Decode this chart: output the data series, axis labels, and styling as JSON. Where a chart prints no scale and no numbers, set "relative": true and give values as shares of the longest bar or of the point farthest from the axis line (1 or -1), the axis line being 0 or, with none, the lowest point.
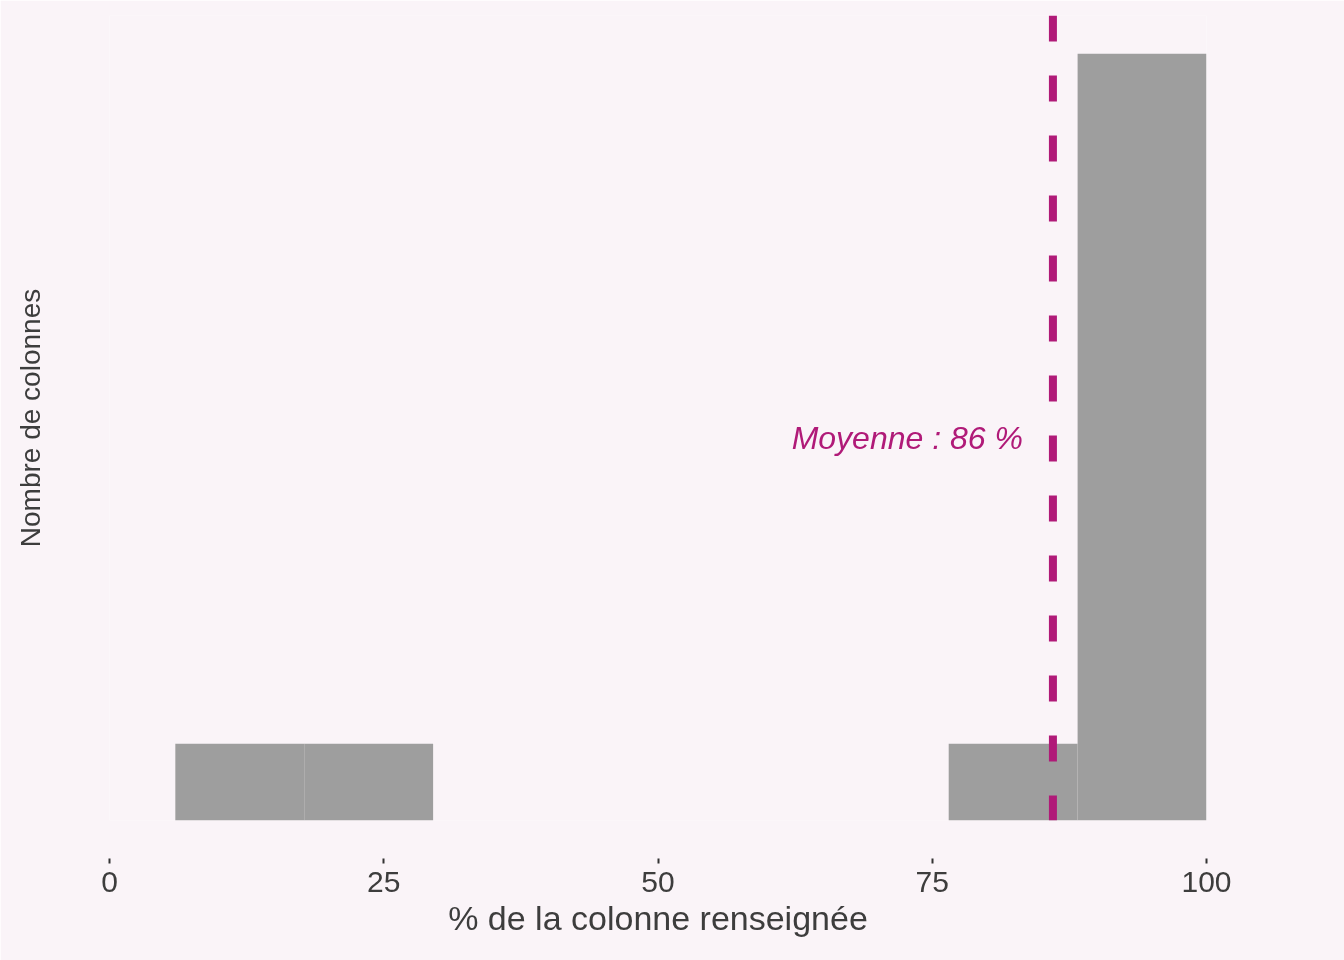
{
  "chart_data": {
    "type": "bar",
    "xlabel": "% de la colonne renseignée",
    "ylabel": "Nombre de colonnes",
    "x": [
      11.875,
      23.625,
      82.375,
      94.125
    ],
    "values": [
      0.1,
      0.1,
      0.1,
      1
    ],
    "relative": true,
    "color": "#9e9e9e",
    "xlim": [
      0,
      100
    ],
    "xticks": [
      0,
      25,
      50,
      75,
      100
    ],
    "ref_lines": [
      {
        "axis": "x",
        "value": 86,
        "label": "Moyenne : 86 %",
        "color": "#b01a78",
        "line_style": "dashed"
      }
    ]
  }
}
